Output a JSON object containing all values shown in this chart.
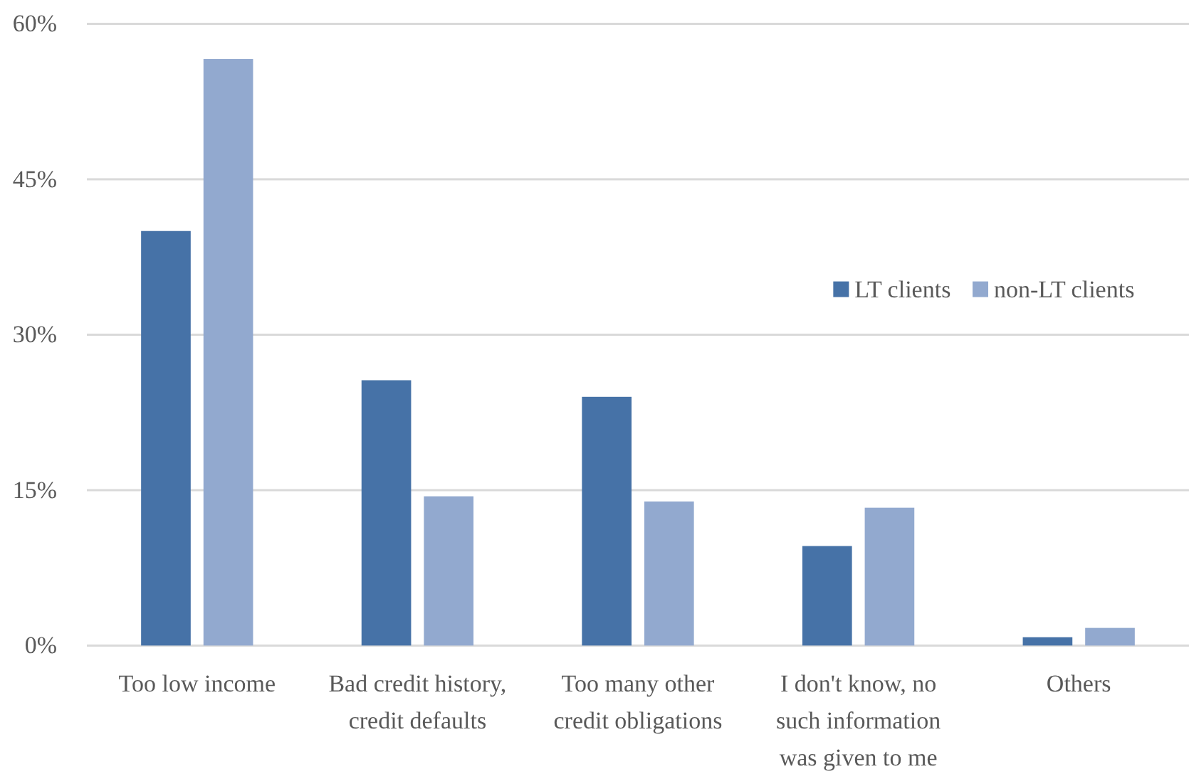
{
  "chart_data": {
    "type": "bar",
    "categories": [
      "Too low income",
      "Bad credit history, credit defaults",
      "Too many other credit obligations",
      "I don't know, no such information was given to me",
      "Others"
    ],
    "series": [
      {
        "name": "LT clients",
        "color": "#4672a7",
        "values": [
          40.0,
          25.6,
          24.0,
          9.6,
          0.8
        ]
      },
      {
        "name": "non-LT clients",
        "color": "#92a9cf",
        "values": [
          56.6,
          14.4,
          13.9,
          13.3,
          1.7
        ]
      }
    ],
    "ylim": [
      0,
      60
    ],
    "yticks": [
      {
        "value": 0,
        "label": "0%"
      },
      {
        "value": 15,
        "label": "15%"
      },
      {
        "value": 30,
        "label": "30%"
      },
      {
        "value": 45,
        "label": "45%"
      },
      {
        "value": 60,
        "label": "60%"
      }
    ],
    "grid": "y",
    "legend": "right"
  }
}
